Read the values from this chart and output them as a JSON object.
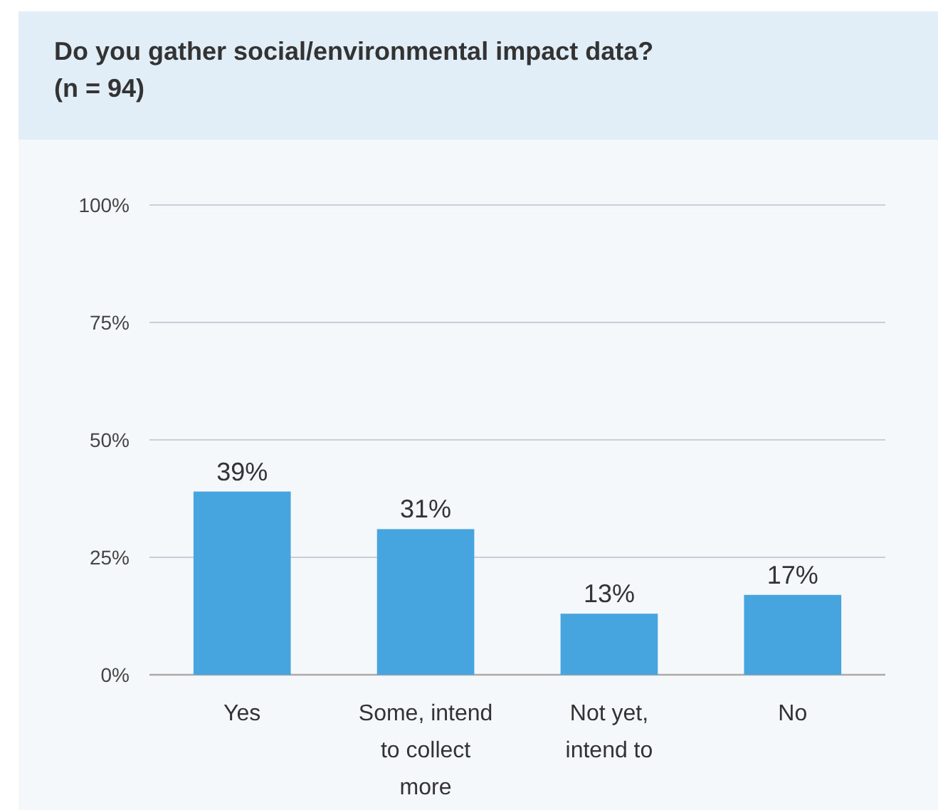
{
  "chart_data": {
    "type": "bar",
    "title": "Do you gather social/environmental impact data?",
    "subtitle": "(n = 94)",
    "categories": [
      "Yes",
      "Some, intend to collect more",
      "Not yet, intend to",
      "No"
    ],
    "values": [
      39,
      31,
      13,
      17
    ],
    "value_labels": [
      "39%",
      "31%",
      "13%",
      "17%"
    ],
    "color": "#46a4de",
    "ylim": [
      0,
      100
    ],
    "yticks": [
      {
        "value": 0,
        "label": "0%"
      },
      {
        "value": 25,
        "label": "25%"
      },
      {
        "value": 50,
        "label": "50%"
      },
      {
        "value": 75,
        "label": "75%"
      },
      {
        "value": 100,
        "label": "100%"
      }
    ],
    "grid": "y"
  }
}
